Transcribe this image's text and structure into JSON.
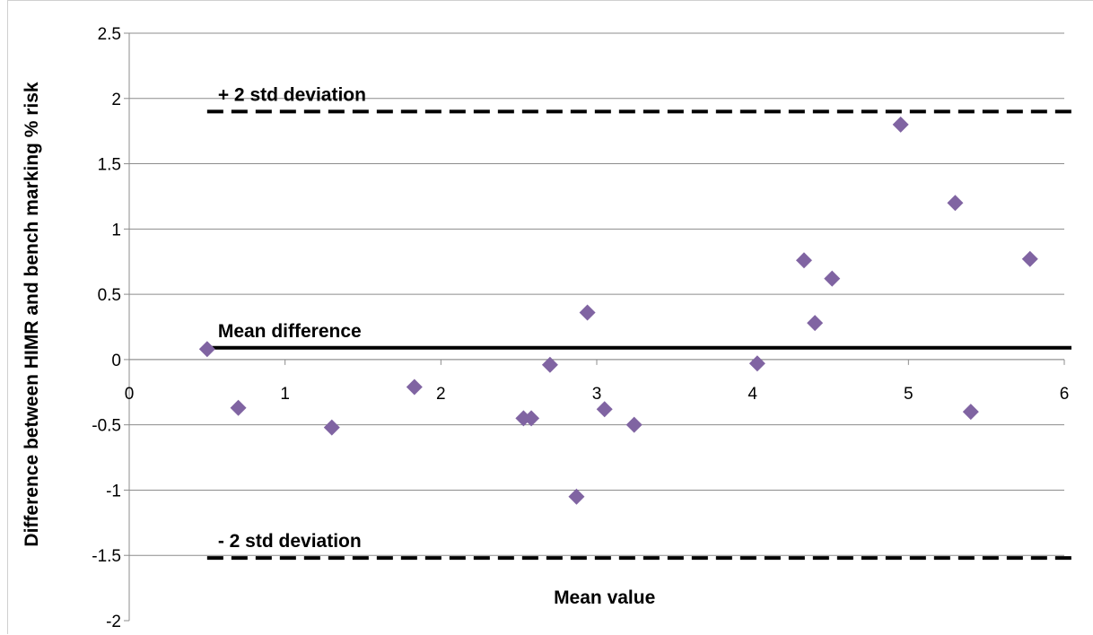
{
  "chart_data": {
    "type": "scatter",
    "title": "",
    "xlabel": "Mean value",
    "ylabel": "Difference between HIMR  and  bench marking % risk",
    "xlim": [
      0,
      6
    ],
    "ylim": [
      -2,
      2.5
    ],
    "x_ticks": [
      "0",
      "1",
      "2",
      "3",
      "4",
      "5",
      "6"
    ],
    "y_ticks": [
      "2.5",
      "2",
      "1.5",
      "1",
      "0.5",
      "0",
      "-0.5",
      "-1",
      "-1.5",
      "-2"
    ],
    "grid": "horizontal",
    "marker_color": "#8064a2",
    "points": [
      {
        "x": 0.5,
        "y": 0.08
      },
      {
        "x": 0.7,
        "y": -0.37
      },
      {
        "x": 1.3,
        "y": -0.52
      },
      {
        "x": 1.83,
        "y": -0.21
      },
      {
        "x": 2.53,
        "y": -0.45
      },
      {
        "x": 2.58,
        "y": -0.45
      },
      {
        "x": 2.7,
        "y": -0.04
      },
      {
        "x": 2.87,
        "y": -1.05
      },
      {
        "x": 2.94,
        "y": 0.36
      },
      {
        "x": 3.05,
        "y": -0.38
      },
      {
        "x": 3.24,
        "y": -0.5
      },
      {
        "x": 4.03,
        "y": -0.03
      },
      {
        "x": 4.33,
        "y": 0.76
      },
      {
        "x": 4.4,
        "y": 0.28
      },
      {
        "x": 4.51,
        "y": 0.62
      },
      {
        "x": 4.95,
        "y": 1.8
      },
      {
        "x": 5.3,
        "y": 1.2
      },
      {
        "x": 5.4,
        "y": -0.4
      },
      {
        "x": 5.78,
        "y": 0.77
      }
    ],
    "reference_lines": [
      {
        "label": "+ 2 std deviation",
        "y": 1.9,
        "x_start": 0.5,
        "style": "dashed"
      },
      {
        "label": "Mean difference",
        "y": 0.09,
        "x_start": 0.5,
        "style": "solid"
      },
      {
        "label": "- 2 std deviation",
        "y": -1.52,
        "x_start": 0.5,
        "style": "dashed"
      }
    ]
  }
}
